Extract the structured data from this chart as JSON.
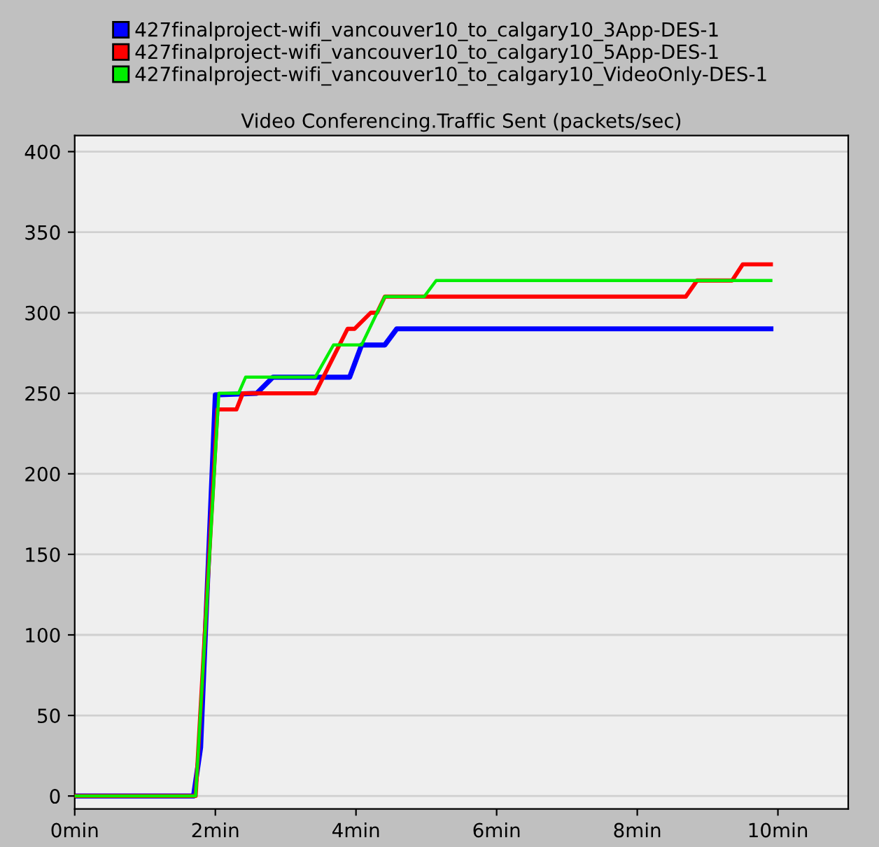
{
  "chart_data": {
    "type": "line",
    "title": "Video Conferencing.Traffic Sent (packets/sec)",
    "xlim": [
      0,
      11
    ],
    "ylim": [
      -8,
      410
    ],
    "xticks": [
      {
        "value": 0,
        "label": "0min"
      },
      {
        "value": 2,
        "label": "2min"
      },
      {
        "value": 4,
        "label": "4min"
      },
      {
        "value": 6,
        "label": "6min"
      },
      {
        "value": 8,
        "label": "8min"
      },
      {
        "value": 10,
        "label": "10min"
      }
    ],
    "yticks": [
      0,
      50,
      100,
      150,
      200,
      250,
      300,
      350,
      400
    ],
    "grid": "y",
    "legend": "top",
    "marker": "none",
    "line_style": "solid",
    "series": [
      {
        "name": "427finalproject-wifi_vancouver10_to_calgary10_3App-DES-1",
        "color": "#0000ff",
        "x": [
          0,
          1.69,
          1.79,
          2.0,
          2.59,
          2.82,
          3.91,
          4.08,
          4.41,
          4.58,
          9.9
        ],
        "values": [
          0,
          0,
          30,
          249,
          250,
          260,
          260,
          280,
          280,
          290,
          290
        ]
      },
      {
        "name": "427finalproject-wifi_vancouver10_to_calgary10_5App-DES-1",
        "color": "#ff0000",
        "x": [
          0,
          1.72,
          2.03,
          2.3,
          2.39,
          3.42,
          3.88,
          3.98,
          4.21,
          4.3,
          4.41,
          8.69,
          8.85,
          9.35,
          9.5,
          9.9
        ],
        "values": [
          0,
          0,
          240,
          240,
          250,
          250,
          290,
          290,
          300,
          300,
          310,
          310,
          320,
          320,
          330,
          330
        ]
      },
      {
        "name": "427finalproject-wifi_vancouver10_to_calgary10_VideoOnly-DES-1",
        "color": "#00ee00",
        "x": [
          0,
          1.72,
          2.05,
          2.33,
          2.43,
          3.42,
          3.68,
          4.08,
          4.41,
          4.97,
          5.14,
          9.9
        ],
        "values": [
          0,
          0,
          250,
          250,
          260,
          260,
          280,
          280,
          310,
          310,
          320,
          320
        ]
      }
    ]
  }
}
